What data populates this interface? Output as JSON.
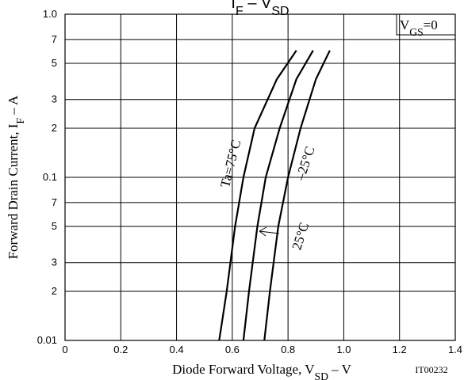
{
  "chart_data": {
    "type": "line",
    "title": [
      "I",
      "F",
      " – V",
      "SD"
    ],
    "xlabel": [
      "Diode Forward Voltage, V",
      "SD",
      " – V"
    ],
    "ylabel": [
      "Forward Drain Current, I",
      "F",
      " – A"
    ],
    "condition": [
      "V",
      "GS",
      "=0"
    ],
    "code": "IT00232",
    "xlim": [
      0,
      1.4
    ],
    "xticks": [
      0,
      0.2,
      0.4,
      0.6,
      0.8,
      {
        "value": 1,
        "label": "1.0"
      },
      1.2,
      1.4
    ],
    "ylim": [
      0.01,
      1
    ],
    "ylog": true,
    "yticks": [
      0.01,
      {
        "value": 0.02,
        "label": "2"
      },
      {
        "value": 0.03,
        "label": "3"
      },
      {
        "value": 0.05,
        "label": "5"
      },
      {
        "value": 0.07,
        "label": "7"
      },
      0.1,
      {
        "value": 0.2,
        "label": "2"
      },
      {
        "value": 0.3,
        "label": "3"
      },
      {
        "value": 0.5,
        "label": "5"
      },
      {
        "value": 0.7,
        "label": "7"
      },
      {
        "value": 1,
        "label": "1.0"
      }
    ],
    "grid": true,
    "series": [
      {
        "name": "Ta=75°C",
        "color": "#000000",
        "x": [
          0.553,
          0.58,
          0.61,
          0.64,
          0.68,
          0.76,
          0.83
        ],
        "values": [
          0.01,
          0.02,
          0.05,
          0.1,
          0.2,
          0.4,
          0.6
        ]
      },
      {
        "name": "25°C",
        "color": "#000000",
        "x": [
          0.64,
          0.66,
          0.69,
          0.72,
          0.77,
          0.83,
          0.89
        ],
        "values": [
          0.01,
          0.02,
          0.05,
          0.1,
          0.2,
          0.4,
          0.6
        ]
      },
      {
        "name": "–25°C",
        "color": "#000000",
        "x": [
          0.715,
          0.735,
          0.765,
          0.8,
          0.845,
          0.9,
          0.95
        ],
        "values": [
          0.01,
          0.02,
          0.05,
          0.1,
          0.2,
          0.4,
          0.6
        ]
      }
    ]
  }
}
